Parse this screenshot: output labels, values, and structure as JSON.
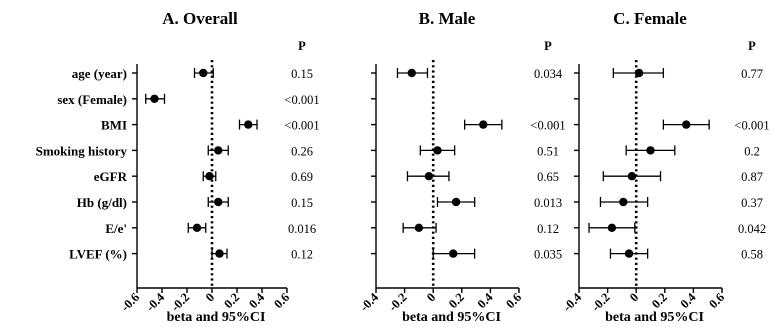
{
  "chart_data": [
    {
      "type": "scatter",
      "title": "A. Overall",
      "xlabel": "beta and 95%CI",
      "xlim": [
        -0.6,
        0.6
      ],
      "xticks": [
        "-0.6",
        "-0.4",
        "-0.2",
        "0",
        "0.2",
        "0.4",
        "0.6"
      ],
      "p_header": "P",
      "reference_line_x": 0,
      "rows": [
        {
          "label": "age (year)",
          "beta": -0.07,
          "lo": -0.14,
          "hi": 0.01,
          "p": "0.15"
        },
        {
          "label": "sex (Female)",
          "beta": -0.46,
          "lo": -0.53,
          "hi": -0.38,
          "p": "<0.001"
        },
        {
          "label": "BMI",
          "beta": 0.29,
          "lo": 0.22,
          "hi": 0.36,
          "p": "<0.001"
        },
        {
          "label": "Smoking history",
          "beta": 0.05,
          "lo": -0.03,
          "hi": 0.13,
          "p": "0.26"
        },
        {
          "label": "eGFR",
          "beta": -0.02,
          "lo": -0.07,
          "hi": 0.03,
          "p": "0.69"
        },
        {
          "label": "Hb (g/dl)",
          "beta": 0.05,
          "lo": -0.03,
          "hi": 0.13,
          "p": "0.15"
        },
        {
          "label": "E/e'",
          "beta": -0.12,
          "lo": -0.19,
          "hi": -0.05,
          "p": "0.016"
        },
        {
          "label": "LVEF (%)",
          "beta": 0.06,
          "lo": 0.0,
          "hi": 0.12,
          "p": "0.12"
        }
      ]
    },
    {
      "type": "scatter",
      "title": "B. Male",
      "xlabel": "beta and 95%CI",
      "xlim": [
        -0.4,
        0.6
      ],
      "xticks": [
        "-0.4",
        "-0.2",
        "0",
        "0.2",
        "0.4",
        "0.6"
      ],
      "p_header": "P",
      "reference_line_x": 0,
      "rows": [
        {
          "label": "age (year)",
          "beta": -0.15,
          "lo": -0.25,
          "hi": -0.04,
          "p": "0.034"
        },
        {
          "label": "sex (Female)",
          "beta": null,
          "lo": null,
          "hi": null,
          "p": ""
        },
        {
          "label": "BMI",
          "beta": 0.35,
          "lo": 0.22,
          "hi": 0.48,
          "p": "<0.001"
        },
        {
          "label": "Smoking history",
          "beta": 0.03,
          "lo": -0.09,
          "hi": 0.15,
          "p": "0.51"
        },
        {
          "label": "eGFR",
          "beta": -0.03,
          "lo": -0.18,
          "hi": 0.11,
          "p": "0.65"
        },
        {
          "label": "Hb (g/dl)",
          "beta": 0.16,
          "lo": 0.03,
          "hi": 0.29,
          "p": "0.013"
        },
        {
          "label": "E/e'",
          "beta": -0.1,
          "lo": -0.21,
          "hi": 0.02,
          "p": "0.12"
        },
        {
          "label": "LVEF (%)",
          "beta": 0.14,
          "lo": 0.0,
          "hi": 0.29,
          "p": "0.035"
        }
      ]
    },
    {
      "type": "scatter",
      "title": "C. Female",
      "xlabel": "beta and 95%CI",
      "xlim": [
        -0.4,
        0.6
      ],
      "xticks": [
        "-0.4",
        "-0.2",
        "0",
        "0.2",
        "0.4",
        "0.6"
      ],
      "p_header": "P",
      "reference_line_x": 0,
      "rows": [
        {
          "label": "age (year)",
          "beta": 0.02,
          "lo": -0.16,
          "hi": 0.19,
          "p": "0.77"
        },
        {
          "label": "sex (Female)",
          "beta": null,
          "lo": null,
          "hi": null,
          "p": ""
        },
        {
          "label": "BMI",
          "beta": 0.35,
          "lo": 0.19,
          "hi": 0.51,
          "p": "<0.001"
        },
        {
          "label": "Smoking history",
          "beta": 0.1,
          "lo": -0.07,
          "hi": 0.27,
          "p": "0.2"
        },
        {
          "label": "eGFR",
          "beta": -0.03,
          "lo": -0.23,
          "hi": 0.17,
          "p": "0.87"
        },
        {
          "label": "Hb (g/dl)",
          "beta": -0.09,
          "lo": -0.25,
          "hi": 0.08,
          "p": "0.37"
        },
        {
          "label": "E/e'",
          "beta": -0.17,
          "lo": -0.33,
          "hi": -0.01,
          "p": "0.042"
        },
        {
          "label": "LVEF (%)",
          "beta": -0.05,
          "lo": -0.18,
          "hi": 0.08,
          "p": "0.58"
        }
      ]
    }
  ]
}
